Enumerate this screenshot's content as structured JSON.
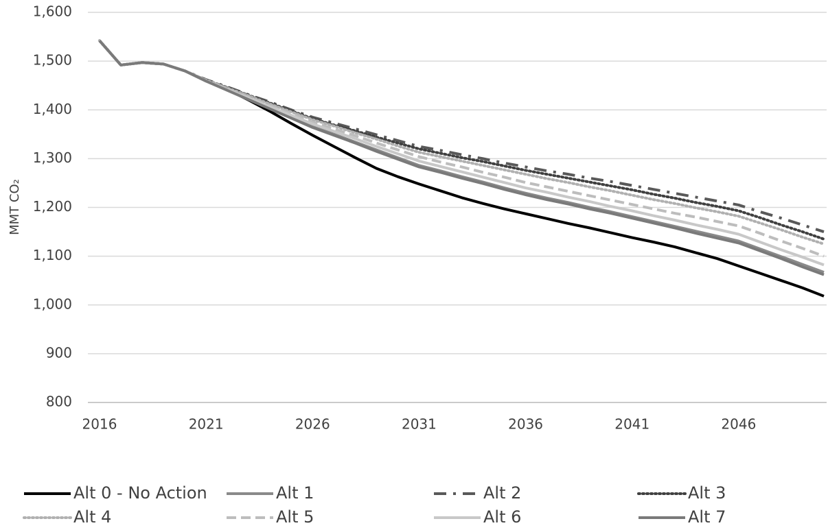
{
  "chart_data": {
    "type": "line",
    "y_label": "MMT CO₂",
    "x": [
      2016,
      2017,
      2018,
      2019,
      2020,
      2021,
      2022,
      2023,
      2024,
      2025,
      2026,
      2027,
      2028,
      2029,
      2030,
      2031,
      2032,
      2033,
      2034,
      2035,
      2036,
      2037,
      2038,
      2039,
      2040,
      2041,
      2042,
      2043,
      2044,
      2045,
      2046,
      2047,
      2048,
      2049,
      2050
    ],
    "xlim": [
      2016,
      2050
    ],
    "xticks": [
      2016,
      2021,
      2026,
      2031,
      2036,
      2041,
      2046
    ],
    "ylim": [
      800,
      1600
    ],
    "yticks": [
      {
        "value": 800,
        "label": "800"
      },
      {
        "value": 900,
        "label": "900"
      },
      {
        "value": 1000,
        "label": "1,000"
      },
      {
        "value": 1100,
        "label": "1,100"
      },
      {
        "value": 1200,
        "label": "1,200"
      },
      {
        "value": 1300,
        "label": "1,300"
      },
      {
        "value": 1400,
        "label": "1,400"
      },
      {
        "value": 1500,
        "label": "1,500"
      },
      {
        "value": 1600,
        "label": "1,600"
      }
    ],
    "grid": true,
    "legend": "bottom",
    "series": [
      {
        "name": "Alt 0 - No Action",
        "color": "#000000",
        "dash": "solid",
        "values": [
          1542,
          1492,
          1497,
          1494,
          1480,
          1460,
          1442,
          1420,
          1397,
          1372,
          1348,
          1325,
          1302,
          1280,
          1263,
          1248,
          1234,
          1220,
          1208,
          1197,
          1187,
          1177,
          1167,
          1158,
          1148,
          1138,
          1129,
          1119,
          1107,
          1095,
          1080,
          1065,
          1050,
          1035,
          1018
        ]
      },
      {
        "name": "Alt 1",
        "color": "#8a8a8a",
        "dash": "solid",
        "values": [
          1542,
          1492,
          1497,
          1494,
          1480,
          1459,
          1441,
          1422,
          1403,
          1384,
          1366,
          1350,
          1334,
          1318,
          1302,
          1286,
          1275,
          1263,
          1252,
          1240,
          1229,
          1219,
          1210,
          1200,
          1191,
          1181,
          1171,
          1161,
          1151,
          1141,
          1131,
          1115,
          1099,
          1083,
          1067
        ]
      },
      {
        "name": "Alt 2",
        "color": "#595959",
        "dash": "dash-dot",
        "values": [
          1542,
          1492,
          1497,
          1494,
          1480,
          1462,
          1447,
          1431,
          1416,
          1400,
          1385,
          1373,
          1361,
          1349,
          1337,
          1325,
          1317,
          1308,
          1300,
          1291,
          1283,
          1275,
          1268,
          1260,
          1253,
          1245,
          1237,
          1229,
          1221,
          1213,
          1205,
          1191,
          1178,
          1164,
          1150
        ]
      },
      {
        "name": "Alt 3",
        "color": "#404040",
        "dash": "dotted",
        "values": [
          1542,
          1492,
          1497,
          1494,
          1480,
          1461,
          1446,
          1430,
          1414,
          1398,
          1382,
          1369,
          1357,
          1344,
          1332,
          1320,
          1311,
          1302,
          1294,
          1285,
          1276,
          1268,
          1260,
          1252,
          1244,
          1236,
          1227,
          1219,
          1210,
          1202,
          1193,
          1179,
          1164,
          1150,
          1135
        ]
      },
      {
        "name": "Alt 4",
        "color": "#b0b0b0",
        "dash": "dotted",
        "values": [
          1542,
          1492,
          1497,
          1494,
          1480,
          1461,
          1445,
          1429,
          1412,
          1396,
          1380,
          1367,
          1353,
          1340,
          1326,
          1313,
          1304,
          1295,
          1286,
          1277,
          1268,
          1259,
          1251,
          1242,
          1234,
          1225,
          1216,
          1208,
          1199,
          1191,
          1182,
          1168,
          1154,
          1139,
          1125
        ]
      },
      {
        "name": "Alt 5",
        "color": "#bdbdbd",
        "dash": "dashed",
        "values": [
          1542,
          1492,
          1497,
          1494,
          1480,
          1460,
          1443,
          1426,
          1409,
          1392,
          1375,
          1361,
          1347,
          1332,
          1318,
          1304,
          1293,
          1283,
          1272,
          1262,
          1251,
          1242,
          1233,
          1224,
          1215,
          1206,
          1197,
          1188,
          1180,
          1171,
          1162,
          1147,
          1131,
          1116,
          1100
        ]
      },
      {
        "name": "Alt 6",
        "color": "#c8c8c8",
        "dash": "solid",
        "values": [
          1542,
          1492,
          1497,
          1494,
          1480,
          1459,
          1441,
          1424,
          1406,
          1389,
          1371,
          1356,
          1341,
          1325,
          1310,
          1295,
          1284,
          1273,
          1262,
          1251,
          1240,
          1231,
          1221,
          1212,
          1202,
          1193,
          1183,
          1174,
          1164,
          1155,
          1145,
          1129,
          1113,
          1098,
          1082
        ]
      },
      {
        "name": "Alt 7",
        "color": "#7a7a7a",
        "dash": "solid",
        "values": [
          1542,
          1492,
          1497,
          1494,
          1480,
          1459,
          1440,
          1421,
          1402,
          1383,
          1364,
          1348,
          1332,
          1315,
          1299,
          1283,
          1272,
          1260,
          1249,
          1237,
          1226,
          1216,
          1207,
          1197,
          1188,
          1178,
          1168,
          1158,
          1147,
          1137,
          1127,
          1111,
          1095,
          1078,
          1062
        ]
      }
    ]
  }
}
